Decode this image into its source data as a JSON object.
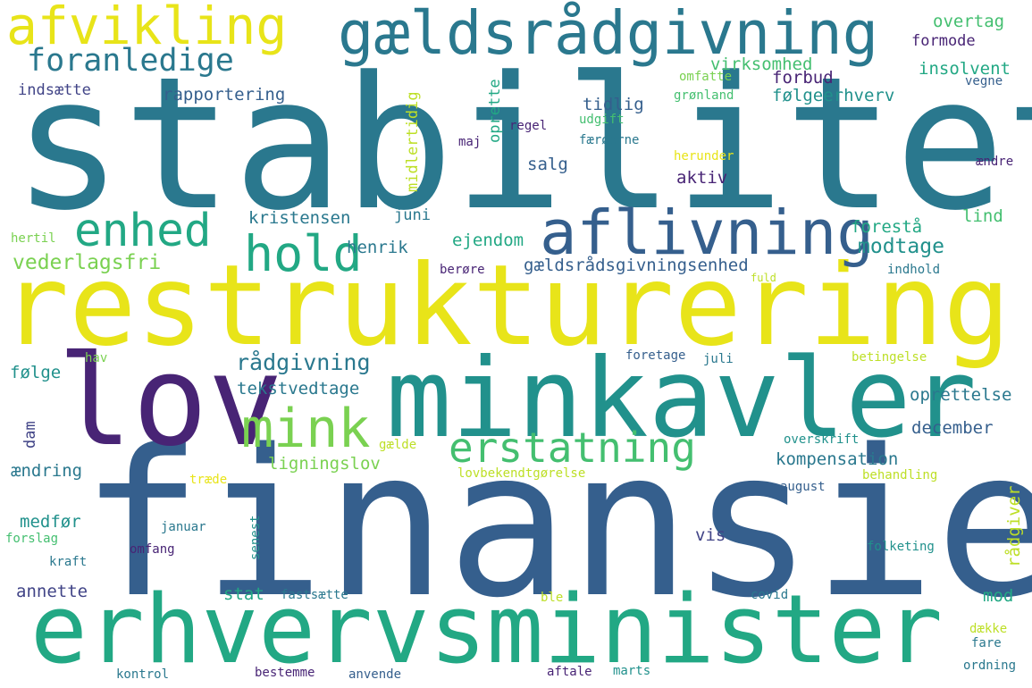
{
  "palette": {
    "dark_purple": "#482475",
    "indigo": "#414487",
    "blue": "#355f8d",
    "teal_blue": "#2a788e",
    "teal": "#21918c",
    "green_teal": "#22a884",
    "green": "#44bf70",
    "light_green": "#7ad151",
    "lime": "#bddf26",
    "yellow": "#e8e419"
  },
  "words": [
    {
      "text": "stabilitet"
    },
    {
      "text": "finansiel"
    },
    {
      "text": "restrukturering"
    },
    {
      "text": "erhvervsminister"
    },
    {
      "text": "minkavler"
    },
    {
      "text": "lov"
    },
    {
      "text": "gældsrådgivning"
    },
    {
      "text": "aflivning"
    },
    {
      "text": "afvikling"
    },
    {
      "text": "erstatning"
    },
    {
      "text": "mink"
    },
    {
      "text": "enhed"
    },
    {
      "text": "hold"
    },
    {
      "text": "foranledige"
    },
    {
      "text": "vederlagsfri"
    },
    {
      "text": "rådgivning"
    },
    {
      "text": "kristensen"
    },
    {
      "text": "henrik"
    },
    {
      "text": "ejendom"
    },
    {
      "text": "gældsrådsgivningsenhed"
    },
    {
      "text": "modtage"
    },
    {
      "text": "forestå"
    },
    {
      "text": "lind"
    },
    {
      "text": "juni"
    },
    {
      "text": "salg"
    },
    {
      "text": "aktiv"
    },
    {
      "text": "tidlig"
    },
    {
      "text": "virksomhed"
    },
    {
      "text": "forbud"
    },
    {
      "text": "følgeerhverv"
    },
    {
      "text": "insolvent"
    },
    {
      "text": "overtag"
    },
    {
      "text": "formode"
    },
    {
      "text": "rapportering"
    },
    {
      "text": "indsætte"
    },
    {
      "text": "omfatte"
    },
    {
      "text": "grønland"
    },
    {
      "text": "vegne"
    },
    {
      "text": "udgift"
    },
    {
      "text": "regel"
    },
    {
      "text": "færøerne"
    },
    {
      "text": "herunder"
    },
    {
      "text": "ændre"
    },
    {
      "text": "maj"
    },
    {
      "text": "oprette"
    },
    {
      "text": "midlertidig"
    },
    {
      "text": "hertil"
    },
    {
      "text": "berøre"
    },
    {
      "text": "indhold"
    },
    {
      "text": "fuld"
    },
    {
      "text": "følge"
    },
    {
      "text": "hav"
    },
    {
      "text": "tekstvedtage"
    },
    {
      "text": "oprettelse"
    },
    {
      "text": "december"
    },
    {
      "text": "foretage"
    },
    {
      "text": "juli"
    },
    {
      "text": "betingelse"
    },
    {
      "text": "dam"
    },
    {
      "text": "ændring"
    },
    {
      "text": "ligningslov"
    },
    {
      "text": "kompensation"
    },
    {
      "text": "gælde"
    },
    {
      "text": "overskrift"
    },
    {
      "text": "træde"
    },
    {
      "text": "lovbekendtgørelse"
    },
    {
      "text": "behandling"
    },
    {
      "text": "august"
    },
    {
      "text": "rådgiver"
    },
    {
      "text": "medfør"
    },
    {
      "text": "januar"
    },
    {
      "text": "forslag"
    },
    {
      "text": "omfang"
    },
    {
      "text": "senest"
    },
    {
      "text": "vis"
    },
    {
      "text": "kraft"
    },
    {
      "text": "folketing"
    },
    {
      "text": "annette"
    },
    {
      "text": "stat"
    },
    {
      "text": "fastsætte"
    },
    {
      "text": "covid"
    },
    {
      "text": "mod"
    },
    {
      "text": "ble"
    },
    {
      "text": "dække"
    },
    {
      "text": "fare"
    },
    {
      "text": "kontrol"
    },
    {
      "text": "bestemme"
    },
    {
      "text": "anvende"
    },
    {
      "text": "aftale"
    },
    {
      "text": "marts"
    },
    {
      "text": "ordning"
    }
  ]
}
